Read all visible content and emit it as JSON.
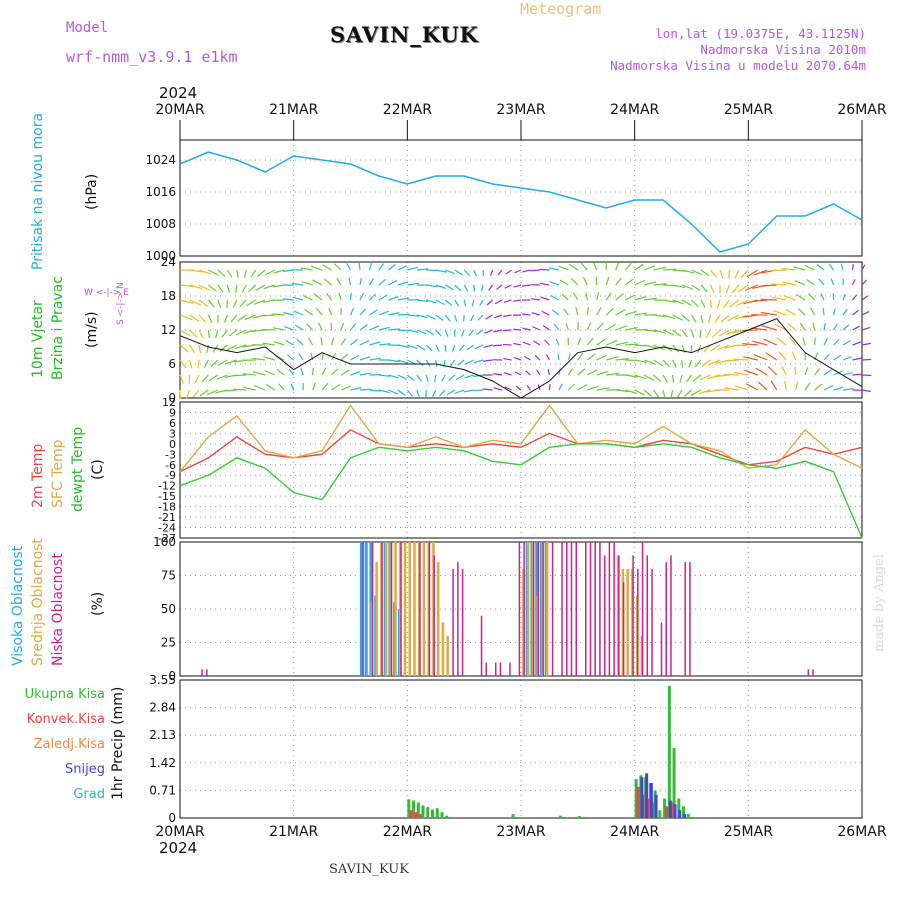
{
  "header": {
    "model_label": "Model",
    "model_name": "wrf-nmm_v3.9.1 e1km",
    "station": "SAVIN_KUK",
    "meteogram_label": "Meteogram",
    "lonlat": "lon,lat (19.0375E, 43.1125N)",
    "elevation": "Nadmorska Visina 2010m",
    "model_elevation": "Nadmorska Visina u modelu 2070.64m",
    "year_top": "2024",
    "year_bottom": "2024",
    "footer_station": "SAVIN_KUK",
    "credit": "made by Angel"
  },
  "colors": {
    "pressure": "#22aaee",
    "temp2m": "#ee4444",
    "sfc": "#ddaa44",
    "dewpt": "#33cc33",
    "high_cloud": "#22aaee",
    "mid_cloud": "#ddaa44",
    "low_cloud": "#cc2288",
    "total_precip": "#33bb33",
    "conv_precip": "#ee4444",
    "frozen_precip": "#ee8844",
    "snow": "#4444dd",
    "hail": "#22bbbb",
    "text_violet": "#b05ad9"
  },
  "panel_labels": {
    "pressure": [
      "Pritisak na nivou mora",
      "(hPa)"
    ],
    "wind": [
      "10m Vjetar",
      "Brzina i Pravac",
      "(m/s)"
    ],
    "wind_compass": "W <-|-> E",
    "wind_compass_ns": "S <-|-> N",
    "temp": [
      "2m Temp",
      "SFC Temp",
      "dewpt Temp",
      "(C)"
    ],
    "cloud": [
      "Visoka Oblacnost",
      "Srednja Oblacnost",
      "Niska Oblacnost",
      "(%)"
    ],
    "precip_legend": [
      "Ukupna Kisa",
      "Konvek.Kisa",
      "Zaledj.Kisa",
      "Snijeg",
      "Grad"
    ],
    "precip_unit": "1hr Precip (mm)"
  },
  "chart_data": [
    {
      "type": "line",
      "name": "pressure",
      "x_labels": [
        "20MAR",
        "21MAR",
        "22MAR",
        "23MAR",
        "24MAR",
        "25MAR",
        "26MAR"
      ],
      "x_hours": [
        0,
        6,
        12,
        18,
        24,
        30,
        36,
        42,
        48,
        54,
        60,
        66,
        72,
        78,
        84,
        90,
        96,
        102,
        108,
        114,
        120,
        126,
        132,
        138,
        144
      ],
      "yticks": [
        1000,
        1008,
        1016,
        1024
      ],
      "ylim": [
        1000,
        1029
      ],
      "series": [
        {
          "name": "Pritisak na nivou mora",
          "values": [
            1023,
            1026,
            1024,
            1021,
            1025,
            1024,
            1023,
            1020,
            1018,
            1020,
            1020,
            1018,
            1017,
            1016,
            1014,
            1012,
            1014,
            1014,
            1008,
            1001,
            1003,
            1010,
            1010,
            1013,
            1009
          ]
        }
      ]
    },
    {
      "type": "line",
      "name": "wind_speed",
      "yticks": [
        0,
        6,
        12,
        18,
        24
      ],
      "ylim": [
        0,
        24
      ],
      "series": [
        {
          "name": "10m Vjetar Brzina",
          "values": [
            11,
            9,
            8,
            9,
            5,
            8,
            6,
            6,
            6,
            6,
            5,
            3,
            0,
            3,
            8,
            9,
            8,
            9,
            8,
            10,
            12,
            14,
            8,
            5,
            2
          ]
        }
      ]
    },
    {
      "type": "line",
      "name": "temperature",
      "yticks": [
        12,
        9,
        6,
        3,
        0,
        -3,
        -6,
        -9,
        -12,
        -15,
        -18,
        -21,
        -24,
        -27
      ],
      "ylim": [
        -27,
        12
      ],
      "series": [
        {
          "name": "2m Temp",
          "values": [
            -8,
            -4,
            2,
            -3,
            -4,
            -3,
            4,
            0,
            -1,
            0,
            -1,
            0,
            -1,
            3,
            0,
            0,
            -1,
            1,
            0,
            -3,
            -6,
            -5,
            -1,
            -3,
            -1
          ]
        },
        {
          "name": "SFC Temp",
          "values": [
            -8,
            2,
            8,
            -2,
            -4,
            -2,
            11,
            0,
            -1,
            2,
            -1,
            1,
            0,
            11,
            0,
            1,
            0,
            5,
            0,
            -2,
            -7,
            -6,
            4,
            -3,
            -7
          ]
        },
        {
          "name": "dewpt Temp",
          "values": [
            -12,
            -9,
            -4,
            -7,
            -14,
            -16,
            -4,
            -1,
            -2,
            -1,
            -2,
            -5,
            -6,
            -1,
            0,
            0,
            -1,
            0,
            -1,
            -4,
            -6,
            -7,
            -5,
            -8,
            -27
          ]
        }
      ]
    },
    {
      "type": "bar",
      "name": "cloud",
      "yticks": [
        0,
        25,
        50,
        75,
        100
      ],
      "ylim": [
        0,
        100
      ],
      "series": [
        {
          "name": "Visoka Oblacnost",
          "hours": [
            38,
            39,
            40,
            41,
            43,
            44,
            45,
            46,
            73,
            74,
            75,
            76,
            77
          ],
          "values": [
            100,
            100,
            100,
            60,
            100,
            100,
            55,
            50,
            100,
            100,
            100,
            100,
            100
          ]
        },
        {
          "name": "Srednja Oblacnost",
          "hours": [
            40,
            41,
            42,
            43,
            44,
            45,
            46,
            47,
            48,
            49,
            50,
            51,
            52,
            53,
            54,
            55,
            56,
            72,
            73,
            74,
            75,
            76,
            77,
            92,
            93,
            94,
            95,
            96,
            97
          ],
          "values": [
            55,
            85,
            100,
            100,
            100,
            100,
            100,
            100,
            100,
            100,
            100,
            100,
            100,
            100,
            85,
            40,
            30,
            80,
            100,
            100,
            60,
            100,
            100,
            90,
            80,
            80,
            80,
            60,
            30
          ]
        },
        {
          "name": "Niska Oblacnost",
          "hours": [
            4,
            5,
            38,
            40,
            42,
            44,
            46,
            50,
            52,
            53,
            57,
            58,
            59,
            63,
            64,
            66,
            67,
            69,
            71,
            72,
            74,
            75,
            76,
            78,
            80,
            81,
            82,
            83,
            85,
            86,
            87,
            88,
            89,
            90,
            91,
            92,
            93,
            95,
            96,
            97,
            98,
            99,
            101,
            102,
            103,
            106,
            107,
            132,
            133
          ],
          "values": [
            5,
            5,
            100,
            100,
            100,
            100,
            100,
            100,
            100,
            90,
            80,
            85,
            80,
            45,
            10,
            10,
            10,
            10,
            100,
            100,
            100,
            100,
            100,
            100,
            100,
            100,
            100,
            100,
            100,
            100,
            100,
            100,
            90,
            100,
            100,
            90,
            70,
            90,
            80,
            100,
            90,
            80,
            40,
            85,
            90,
            85,
            85,
            5,
            5
          ]
        }
      ]
    },
    {
      "type": "bar",
      "name": "precip",
      "yticks": [
        0,
        0.71,
        1.42,
        2.13,
        2.84,
        3.55
      ],
      "ylim": [
        0,
        3.55
      ],
      "series": [
        {
          "name": "Ukupna Kisa",
          "hours": [
            48,
            49,
            50,
            51,
            52,
            53,
            54,
            55,
            56,
            57,
            70,
            80,
            84,
            85,
            96,
            97,
            98,
            99,
            100,
            101,
            102,
            103,
            104,
            105,
            106,
            107
          ],
          "values": [
            0.48,
            0.45,
            0.4,
            0.32,
            0.28,
            0.22,
            0.25,
            0.15,
            0.06,
            0.03,
            0.1,
            0.06,
            0.05,
            0.03,
            1.0,
            1.1,
            1.05,
            0.9,
            0.7,
            0.2,
            0.5,
            3.4,
            1.8,
            0.5,
            0.3,
            0.1
          ]
        },
        {
          "name": "Konvek.Kisa",
          "hours": [
            48,
            49,
            50,
            96,
            97,
            98,
            99,
            102,
            103
          ],
          "values": [
            0.2,
            0.15,
            0.1,
            0.8,
            0.6,
            0.5,
            0.4,
            0.3,
            0.4
          ]
        },
        {
          "name": "Snijeg",
          "hours": [
            97,
            98,
            99,
            100,
            103,
            104,
            105,
            106
          ],
          "values": [
            1.05,
            1.15,
            0.9,
            0.6,
            0.45,
            0.35,
            0.2,
            0.1
          ]
        }
      ]
    }
  ]
}
